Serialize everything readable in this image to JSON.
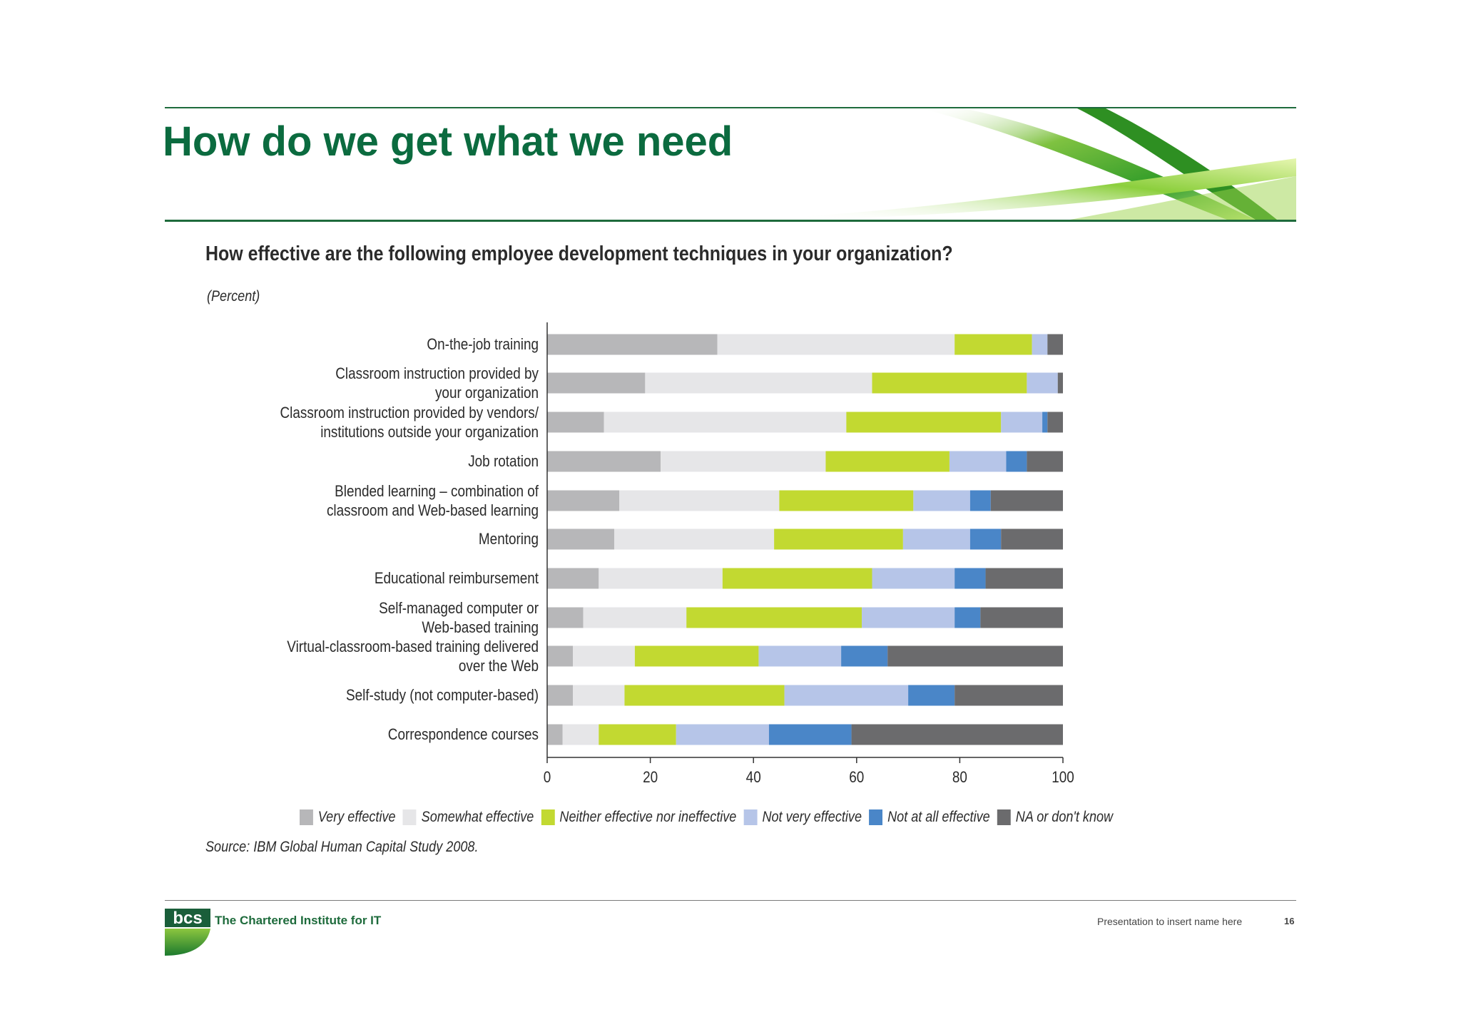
{
  "slide": {
    "title": "How do we get what we need",
    "footer_text": "Presentation to insert name here",
    "page_number": "16",
    "org_name": "The Chartered Institute for IT",
    "logo_text": "bcs"
  },
  "chart_data": {
    "type": "bar",
    "orientation": "horizontal",
    "stacked": true,
    "title": "How effective are the following employee development techniques in your organization?",
    "unit_label": "(Percent)",
    "source": "Source: IBM Global Human Capital Study 2008.",
    "xlabel": "",
    "ylabel": "",
    "xlim": [
      0,
      100
    ],
    "xticks": [
      "0",
      "20",
      "40",
      "60",
      "80",
      "100"
    ],
    "legend_position": "bottom",
    "categories": [
      [
        "On-the-job training"
      ],
      [
        "Classroom instruction provided by",
        "your organization"
      ],
      [
        "Classroom instruction provided by vendors/",
        "institutions outside your organization"
      ],
      [
        "Job rotation"
      ],
      [
        "Blended learning – combination of",
        "classroom and Web-based learning"
      ],
      [
        "Mentoring"
      ],
      [
        "Educational reimbursement"
      ],
      [
        "Self-managed computer or",
        "Web-based training"
      ],
      [
        "Virtual-classroom-based training delivered",
        "over the Web"
      ],
      [
        "Self-study (not computer-based)"
      ],
      [
        "Correspondence courses"
      ]
    ],
    "series": [
      {
        "name": "Very effective",
        "color": "#b7b7b9",
        "values": [
          33,
          19,
          11,
          22,
          14,
          13,
          10,
          7,
          5,
          5,
          3
        ]
      },
      {
        "name": "Somewhat effective",
        "color": "#e6e6e8",
        "values": [
          46,
          44,
          47,
          32,
          31,
          31,
          24,
          20,
          12,
          10,
          7
        ]
      },
      {
        "name": "Neither effective nor ineffective",
        "color": "#c2d931",
        "values": [
          15,
          30,
          30,
          24,
          26,
          25,
          29,
          34,
          24,
          31,
          15
        ]
      },
      {
        "name": "Not very effective",
        "color": "#b6c5e8",
        "values": [
          3,
          6,
          8,
          11,
          11,
          13,
          16,
          18,
          16,
          24,
          18
        ]
      },
      {
        "name": "Not at all effective",
        "color": "#4a86c8",
        "values": [
          0,
          0,
          1,
          4,
          4,
          6,
          6,
          5,
          9,
          9,
          16
        ]
      },
      {
        "name": "NA or don't know",
        "color": "#6b6b6d",
        "values": [
          3,
          1,
          3,
          7,
          14,
          12,
          15,
          16,
          34,
          21,
          41
        ]
      }
    ]
  }
}
